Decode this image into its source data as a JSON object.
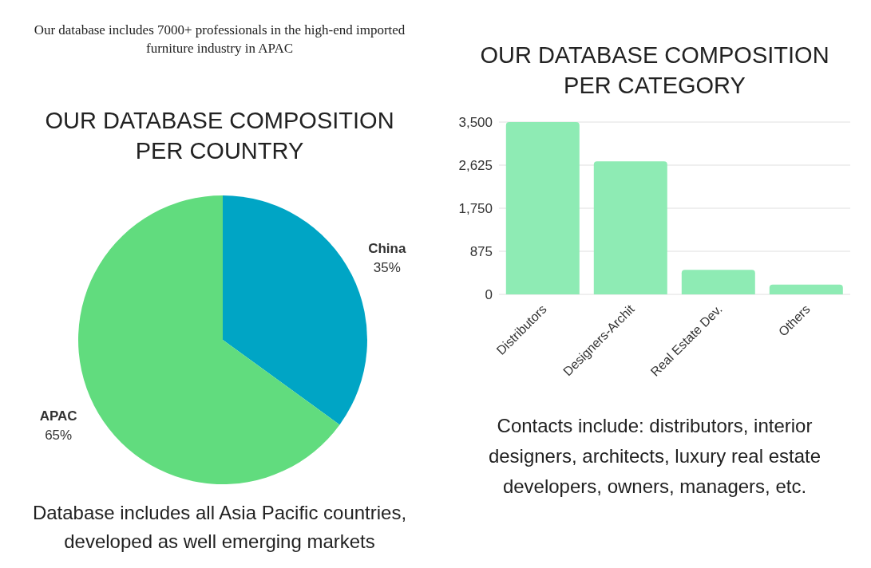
{
  "chart_data": [
    {
      "type": "pie",
      "title": "OUR DATABASE COMPOSITION PER COUNTRY",
      "subtitle": "Our database includes 7000+ professionals in the high-end imported furniture industry in APAC",
      "categories": [
        "China",
        "APAC"
      ],
      "values": [
        35,
        65
      ],
      "colors": [
        "#00a5c5",
        "#61dc7e"
      ],
      "value_labels": [
        "35%",
        "65%"
      ],
      "legend": false,
      "annotations": [
        "Database includes all Asia Pacific countries, developed as well emerging markets"
      ]
    },
    {
      "type": "bar",
      "title": "OUR DATABASE COMPOSITION PER CATEGORY",
      "categories": [
        "Distributors",
        "Designers-Archit",
        "Real Estate Dev.",
        "Others"
      ],
      "values": [
        3500,
        2700,
        500,
        200
      ],
      "color": "#8eebb4",
      "ylim": [
        0,
        3500
      ],
      "yticks": [
        0,
        {
          "value": 875,
          "label": "875"
        },
        {
          "value": 1750,
          "label": "1,750"
        },
        {
          "value": 2625,
          "label": "2,625"
        },
        {
          "value": 3500,
          "label": "3,500"
        }
      ],
      "grid": "y",
      "legend": false,
      "annotations": [
        "Contacts include: distributors, interior designers, architects, luxury real estate developers, owners, managers, etc."
      ]
    }
  ]
}
